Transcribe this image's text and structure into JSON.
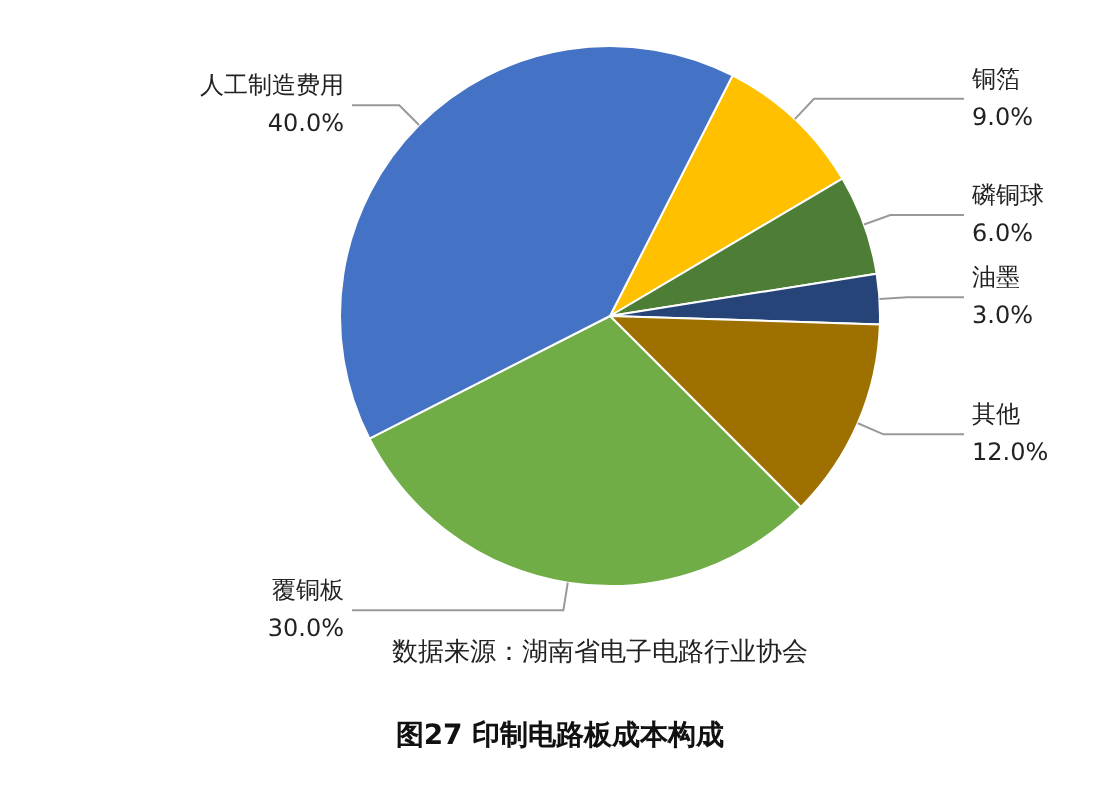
{
  "chart_data": {
    "type": "pie",
    "title": "图27 印制电路板成本构成",
    "categories": [
      "铜箔",
      "磷铜球",
      "油墨",
      "其他",
      "覆铜板",
      "人工制造费用"
    ],
    "values": [
      9,
      6,
      3,
      12,
      30,
      40
    ],
    "colors": [
      "#ffc000",
      "#4e7d35",
      "#264478",
      "#9e7000",
      "#70ad47",
      "#4472c4"
    ],
    "value_labels": [
      "9.0%",
      "6.0%",
      "3.0%",
      "12.0%",
      "30.0%",
      "40.0%"
    ],
    "annotations": [
      "数据来源：湖南省电子电路行业协会"
    ]
  }
}
